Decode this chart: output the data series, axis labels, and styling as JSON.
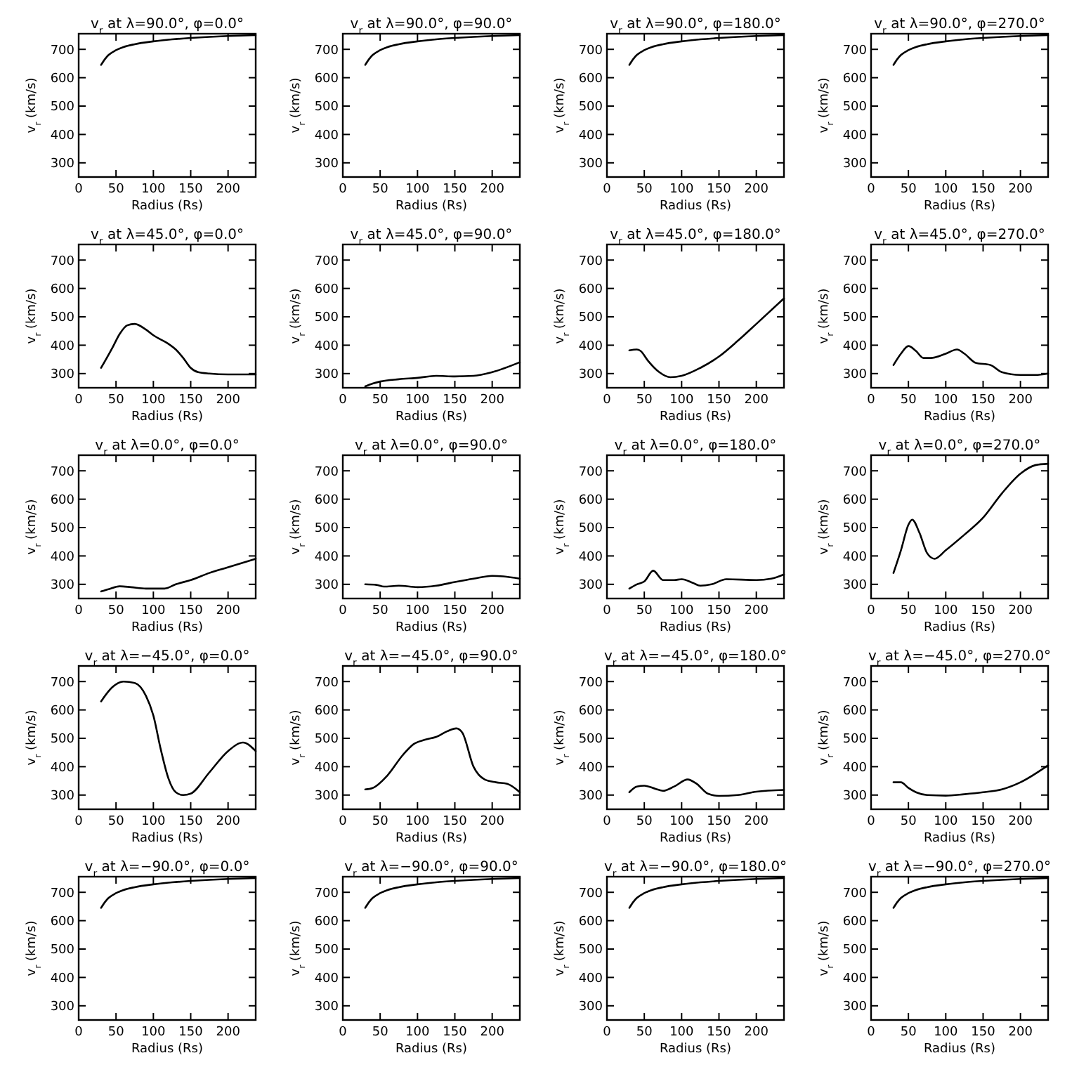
{
  "chart_data": [
    {
      "type": "line",
      "title": "v$_{r}$ at λ=90.0°, φ=0.0°",
      "xlabel": "Radius (Rs)",
      "ylabel": "v$_{r}$ (km/s)",
      "color": "#000000",
      "xlim": [
        0,
        237
      ],
      "ylim": [
        250,
        755
      ],
      "xticks": [
        0,
        50,
        100,
        150,
        200
      ],
      "yticks": [
        300,
        400,
        500,
        600,
        700
      ],
      "x": [
        30,
        35,
        40,
        50,
        60,
        75,
        100,
        125,
        150,
        175,
        200,
        237
      ],
      "values": [
        645,
        665,
        680,
        697,
        708,
        718,
        728,
        735,
        740,
        744,
        747,
        750
      ]
    },
    {
      "type": "line",
      "title": "v$_{r}$ at λ=90.0°, φ=90.0°",
      "xlabel": "Radius (Rs)",
      "ylabel": "v$_{r}$ (km/s)",
      "color": "#000000",
      "xlim": [
        0,
        237
      ],
      "ylim": [
        250,
        755
      ],
      "xticks": [
        0,
        50,
        100,
        150,
        200
      ],
      "yticks": [
        300,
        400,
        500,
        600,
        700
      ],
      "x": [
        30,
        35,
        40,
        50,
        60,
        75,
        100,
        125,
        150,
        175,
        200,
        237
      ],
      "values": [
        645,
        665,
        680,
        697,
        708,
        718,
        728,
        735,
        740,
        744,
        747,
        750
      ]
    },
    {
      "type": "line",
      "title": "v$_{r}$ at λ=90.0°, φ=180.0°",
      "xlabel": "Radius (Rs)",
      "ylabel": "v$_{r}$ (km/s)",
      "color": "#000000",
      "xlim": [
        0,
        237
      ],
      "ylim": [
        250,
        755
      ],
      "xticks": [
        0,
        50,
        100,
        150,
        200
      ],
      "yticks": [
        300,
        400,
        500,
        600,
        700
      ],
      "x": [
        30,
        35,
        40,
        50,
        60,
        75,
        100,
        125,
        150,
        175,
        200,
        237
      ],
      "values": [
        645,
        665,
        680,
        697,
        708,
        718,
        728,
        735,
        740,
        744,
        747,
        750
      ]
    },
    {
      "type": "line",
      "title": "v$_{r}$ at λ=90.0°, φ=270.0°",
      "xlabel": "Radius (Rs)",
      "ylabel": "v$_{r}$ (km/s)",
      "color": "#000000",
      "xlim": [
        0,
        237
      ],
      "ylim": [
        250,
        755
      ],
      "xticks": [
        0,
        50,
        100,
        150,
        200
      ],
      "yticks": [
        300,
        400,
        500,
        600,
        700
      ],
      "x": [
        30,
        35,
        40,
        50,
        60,
        75,
        100,
        125,
        150,
        175,
        200,
        237
      ],
      "values": [
        645,
        665,
        680,
        697,
        708,
        718,
        728,
        735,
        740,
        744,
        747,
        750
      ]
    },
    {
      "type": "line",
      "title": "v$_{r}$ at λ=45.0°, φ=0.0°",
      "xlabel": "Radius (Rs)",
      "ylabel": "v$_{r}$ (km/s)",
      "color": "#000000",
      "xlim": [
        0,
        237
      ],
      "ylim": [
        250,
        755
      ],
      "xticks": [
        0,
        50,
        100,
        150,
        200
      ],
      "yticks": [
        300,
        400,
        500,
        600,
        700
      ],
      "x": [
        30,
        45,
        55,
        65,
        75,
        90,
        100,
        120,
        130,
        140,
        150,
        160,
        175,
        200,
        237
      ],
      "values": [
        320,
        390,
        440,
        470,
        475,
        455,
        435,
        405,
        385,
        355,
        320,
        305,
        300,
        297,
        297
      ]
    },
    {
      "type": "line",
      "title": "v$_{r}$ at λ=45.0°, φ=90.0°",
      "xlabel": "Radius (Rs)",
      "ylabel": "v$_{r}$ (km/s)",
      "color": "#000000",
      "xlim": [
        0,
        237
      ],
      "ylim": [
        250,
        755
      ],
      "xticks": [
        0,
        50,
        100,
        150,
        200
      ],
      "yticks": [
        300,
        400,
        500,
        600,
        700
      ],
      "x": [
        30,
        40,
        50,
        75,
        100,
        125,
        150,
        175,
        200,
        237
      ],
      "values": [
        255,
        265,
        272,
        280,
        285,
        292,
        290,
        292,
        305,
        340
      ]
    },
    {
      "type": "line",
      "title": "v$_{r}$ at λ=45.0°, φ=180.0°",
      "xlabel": "Radius (Rs)",
      "ylabel": "v$_{r}$ (km/s)",
      "color": "#000000",
      "xlim": [
        0,
        237
      ],
      "ylim": [
        250,
        755
      ],
      "xticks": [
        0,
        50,
        100,
        150,
        200
      ],
      "yticks": [
        300,
        400,
        500,
        600,
        700
      ],
      "x": [
        30,
        40,
        45,
        55,
        70,
        85,
        100,
        125,
        150,
        175,
        200,
        237
      ],
      "values": [
        382,
        385,
        380,
        345,
        305,
        287,
        292,
        320,
        360,
        415,
        475,
        565
      ]
    },
    {
      "type": "line",
      "title": "v$_{r}$ at λ=45.0°, φ=270.0°",
      "xlabel": "Radius (Rs)",
      "ylabel": "v$_{r}$ (km/s)",
      "color": "#000000",
      "xlim": [
        0,
        237
      ],
      "ylim": [
        250,
        755
      ],
      "xticks": [
        0,
        50,
        100,
        150,
        200
      ],
      "yticks": [
        300,
        400,
        500,
        600,
        700
      ],
      "x": [
        30,
        40,
        50,
        60,
        70,
        80,
        100,
        115,
        125,
        140,
        160,
        175,
        200,
        220,
        237
      ],
      "values": [
        330,
        370,
        397,
        380,
        355,
        355,
        370,
        385,
        370,
        338,
        330,
        305,
        295,
        295,
        300
      ]
    },
    {
      "type": "line",
      "title": "v$_{r}$ at λ=0.0°, φ=0.0°",
      "xlabel": "Radius (Rs)",
      "ylabel": "v$_{r}$ (km/s)",
      "color": "#000000",
      "xlim": [
        0,
        237
      ],
      "ylim": [
        250,
        755
      ],
      "xticks": [
        0,
        50,
        100,
        150,
        200
      ],
      "yticks": [
        300,
        400,
        500,
        600,
        700
      ],
      "x": [
        30,
        40,
        55,
        70,
        90,
        115,
        130,
        150,
        175,
        200,
        237
      ],
      "values": [
        275,
        283,
        293,
        290,
        285,
        285,
        300,
        315,
        340,
        360,
        390
      ]
    },
    {
      "type": "line",
      "title": "v$_{r}$ at λ=0.0°, φ=90.0°",
      "xlabel": "Radius (Rs)",
      "ylabel": "v$_{r}$ (km/s)",
      "color": "#000000",
      "xlim": [
        0,
        237
      ],
      "ylim": [
        250,
        755
      ],
      "xticks": [
        0,
        50,
        100,
        150,
        200
      ],
      "yticks": [
        300,
        400,
        500,
        600,
        700
      ],
      "x": [
        30,
        45,
        55,
        75,
        100,
        125,
        150,
        175,
        200,
        215,
        237
      ],
      "values": [
        300,
        298,
        292,
        295,
        290,
        295,
        308,
        320,
        330,
        328,
        320
      ]
    },
    {
      "type": "line",
      "title": "v$_{r}$ at λ=0.0°, φ=180.0°",
      "xlabel": "Radius (Rs)",
      "ylabel": "v$_{r}$ (km/s)",
      "color": "#000000",
      "xlim": [
        0,
        237
      ],
      "ylim": [
        250,
        755
      ],
      "xticks": [
        0,
        50,
        100,
        150,
        200
      ],
      "yticks": [
        300,
        400,
        500,
        600,
        700
      ],
      "x": [
        30,
        40,
        50,
        62,
        75,
        90,
        100,
        115,
        125,
        140,
        160,
        200,
        220,
        237
      ],
      "values": [
        285,
        300,
        310,
        348,
        315,
        315,
        318,
        305,
        295,
        300,
        318,
        315,
        320,
        335
      ]
    },
    {
      "type": "line",
      "title": "v$_{r}$ at λ=0.0°, φ=270.0°",
      "xlabel": "Radius (Rs)",
      "ylabel": "v$_{r}$ (km/s)",
      "color": "#000000",
      "xlim": [
        0,
        237
      ],
      "ylim": [
        250,
        755
      ],
      "xticks": [
        0,
        50,
        100,
        150,
        200
      ],
      "yticks": [
        300,
        400,
        500,
        600,
        700
      ],
      "x": [
        30,
        40,
        50,
        55,
        65,
        75,
        85,
        100,
        125,
        150,
        175,
        200,
        220,
        237
      ],
      "values": [
        340,
        420,
        510,
        528,
        480,
        410,
        390,
        420,
        475,
        535,
        620,
        690,
        720,
        725
      ]
    },
    {
      "type": "line",
      "title": "v$_{r}$ at λ=−45.0°, φ=0.0°",
      "xlabel": "Radius (Rs)",
      "ylabel": "v$_{r}$ (km/s)",
      "color": "#000000",
      "xlim": [
        0,
        237
      ],
      "ylim": [
        250,
        755
      ],
      "xticks": [
        0,
        50,
        100,
        150,
        200
      ],
      "yticks": [
        300,
        400,
        500,
        600,
        700
      ],
      "x": [
        30,
        45,
        60,
        75,
        90,
        100,
        110,
        120,
        130,
        140,
        150,
        175,
        200,
        220,
        237
      ],
      "values": [
        630,
        680,
        700,
        695,
        650,
        580,
        460,
        360,
        310,
        300,
        305,
        380,
        455,
        485,
        455
      ]
    },
    {
      "type": "line",
      "title": "v$_{r}$ at λ=−45.0°, φ=90.0°",
      "xlabel": "Radius (Rs)",
      "ylabel": "v$_{r}$ (km/s)",
      "color": "#000000",
      "xlim": [
        0,
        237
      ],
      "ylim": [
        250,
        755
      ],
      "xticks": [
        0,
        50,
        100,
        150,
        200
      ],
      "yticks": [
        300,
        400,
        500,
        600,
        700
      ],
      "x": [
        30,
        40,
        60,
        80,
        95,
        110,
        125,
        140,
        152,
        160,
        175,
        190,
        205,
        220,
        237
      ],
      "values": [
        320,
        325,
        370,
        440,
        480,
        495,
        505,
        525,
        535,
        520,
        400,
        355,
        345,
        340,
        310
      ]
    },
    {
      "type": "line",
      "title": "v$_{r}$ at λ=−45.0°, φ=180.0°",
      "xlabel": "Radius (Rs)",
      "ylabel": "v$_{r}$ (km/s)",
      "color": "#000000",
      "xlim": [
        0,
        237
      ],
      "ylim": [
        250,
        755
      ],
      "xticks": [
        0,
        50,
        100,
        150,
        200
      ],
      "yticks": [
        300,
        400,
        500,
        600,
        700
      ],
      "x": [
        30,
        40,
        50,
        65,
        75,
        90,
        108,
        120,
        135,
        150,
        175,
        200,
        237
      ],
      "values": [
        310,
        330,
        333,
        322,
        315,
        330,
        355,
        340,
        305,
        297,
        300,
        312,
        318
      ]
    },
    {
      "type": "line",
      "title": "v$_{r}$ at λ=−45.0°, φ=270.0°",
      "xlabel": "Radius (Rs)",
      "ylabel": "v$_{r}$ (km/s)",
      "color": "#000000",
      "xlim": [
        0,
        237
      ],
      "ylim": [
        250,
        755
      ],
      "xticks": [
        0,
        50,
        100,
        150,
        200
      ],
      "yticks": [
        300,
        400,
        500,
        600,
        700
      ],
      "x": [
        30,
        40,
        50,
        60,
        75,
        100,
        125,
        150,
        175,
        200,
        237
      ],
      "values": [
        345,
        345,
        325,
        310,
        300,
        298,
        303,
        310,
        320,
        345,
        405
      ]
    },
    {
      "type": "line",
      "title": "v$_{r}$ at λ=−90.0°, φ=0.0°",
      "xlabel": "Radius (Rs)",
      "ylabel": "v$_{r}$ (km/s)",
      "color": "#000000",
      "xlim": [
        0,
        237
      ],
      "ylim": [
        250,
        755
      ],
      "xticks": [
        0,
        50,
        100,
        150,
        200
      ],
      "yticks": [
        300,
        400,
        500,
        600,
        700
      ],
      "x": [
        30,
        35,
        40,
        50,
        60,
        75,
        100,
        125,
        150,
        175,
        200,
        237
      ],
      "values": [
        645,
        665,
        680,
        697,
        708,
        718,
        728,
        735,
        740,
        744,
        747,
        750
      ]
    },
    {
      "type": "line",
      "title": "v$_{r}$ at λ=−90.0°, φ=90.0°",
      "xlabel": "Radius (Rs)",
      "ylabel": "v$_{r}$ (km/s)",
      "color": "#000000",
      "xlim": [
        0,
        237
      ],
      "ylim": [
        250,
        755
      ],
      "xticks": [
        0,
        50,
        100,
        150,
        200
      ],
      "yticks": [
        300,
        400,
        500,
        600,
        700
      ],
      "x": [
        30,
        35,
        40,
        50,
        60,
        75,
        100,
        125,
        150,
        175,
        200,
        237
      ],
      "values": [
        645,
        665,
        680,
        697,
        708,
        718,
        728,
        735,
        740,
        744,
        747,
        750
      ]
    },
    {
      "type": "line",
      "title": "v$_{r}$ at λ=−90.0°, φ=180.0°",
      "xlabel": "Radius (Rs)",
      "ylabel": "v$_{r}$ (km/s)",
      "color": "#000000",
      "xlim": [
        0,
        237
      ],
      "ylim": [
        250,
        755
      ],
      "xticks": [
        0,
        50,
        100,
        150,
        200
      ],
      "yticks": [
        300,
        400,
        500,
        600,
        700
      ],
      "x": [
        30,
        35,
        40,
        50,
        60,
        75,
        100,
        125,
        150,
        175,
        200,
        237
      ],
      "values": [
        645,
        665,
        680,
        697,
        708,
        718,
        728,
        735,
        740,
        744,
        747,
        750
      ]
    },
    {
      "type": "line",
      "title": "v$_{r}$ at λ=−90.0°, φ=270.0°",
      "xlabel": "Radius (Rs)",
      "ylabel": "v$_{r}$ (km/s)",
      "color": "#000000",
      "xlim": [
        0,
        237
      ],
      "ylim": [
        250,
        755
      ],
      "xticks": [
        0,
        50,
        100,
        150,
        200
      ],
      "yticks": [
        300,
        400,
        500,
        600,
        700
      ],
      "x": [
        30,
        35,
        40,
        50,
        60,
        75,
        100,
        125,
        150,
        175,
        200,
        237
      ],
      "values": [
        645,
        665,
        680,
        697,
        708,
        718,
        728,
        735,
        740,
        744,
        747,
        750
      ]
    }
  ]
}
